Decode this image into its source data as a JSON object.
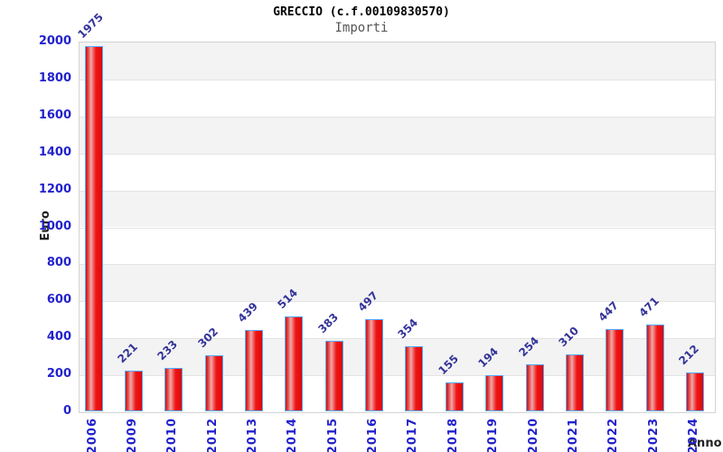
{
  "header": {
    "title": "GRECCIO (c.f.00109830570)",
    "subtitle": "Importi"
  },
  "chart_data": {
    "type": "bar",
    "title": "GRECCIO (c.f.00109830570)",
    "subtitle": "Importi",
    "xlabel": "Anno",
    "ylabel": "Euro",
    "categories": [
      "2006",
      "2009",
      "2010",
      "2012",
      "2013",
      "2014",
      "2015",
      "2016",
      "2017",
      "2018",
      "2019",
      "2020",
      "2021",
      "2022",
      "2023",
      "2024"
    ],
    "values": [
      1975,
      221,
      233,
      302,
      439,
      514,
      383,
      497,
      354,
      155,
      194,
      254,
      310,
      447,
      471,
      212
    ],
    "ylim": [
      0,
      2000
    ],
    "yticks": [
      0,
      200,
      400,
      600,
      800,
      1000,
      1200,
      1400,
      1600,
      1800,
      2000
    ],
    "grid": true,
    "legend": false,
    "colors": {
      "bar_fill": "#ee1515",
      "bar_fill_dark": "#cc0909",
      "bar_fill_highlight": "#f0a8a8",
      "bar_border": "#55aaff",
      "tick_label": "#2222cc",
      "value_label": "#333399",
      "axis_title": "#222222",
      "title": "#000000",
      "subtitle": "#555555",
      "band_gray": "#f3f3f3",
      "band_white": "#ffffff",
      "grid_line": "#e4e4e4",
      "plot_border": "#d4d4d4"
    }
  }
}
